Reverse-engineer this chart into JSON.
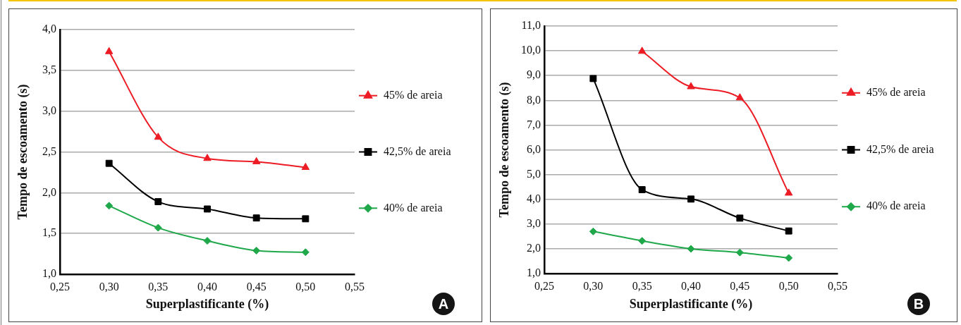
{
  "chart_data": [
    {
      "type": "line",
      "xlabel": "Superplastificante (%)",
      "ylabel": "Tempo de escoamento (s)",
      "x": [
        0.3,
        0.35,
        0.4,
        0.45,
        0.5
      ],
      "xlim": [
        0.25,
        0.55
      ],
      "xticks": [
        {
          "value": 0.25,
          "label": "0,25"
        },
        {
          "value": 0.3,
          "label": "0,30"
        },
        {
          "value": 0.35,
          "label": "0,35"
        },
        {
          "value": 0.4,
          "label": "0,40"
        },
        {
          "value": 0.45,
          "label": "0,45"
        },
        {
          "value": 0.5,
          "label": "0,50"
        },
        {
          "value": 0.55,
          "label": "0,55"
        }
      ],
      "ylim": [
        1,
        4
      ],
      "yticks": [
        {
          "value": 1,
          "label": "1,0"
        },
        {
          "value": 1.5,
          "label": "1,5"
        },
        {
          "value": 2,
          "label": "2,0"
        },
        {
          "value": 2.5,
          "label": "2,5"
        },
        {
          "value": 3,
          "label": "3,0"
        },
        {
          "value": 3.5,
          "label": "3,5"
        },
        {
          "value": 4,
          "label": "4,0"
        }
      ],
      "grid": "y",
      "legend": "right",
      "annotations": [
        "A"
      ],
      "series": [
        {
          "name": "45% de areia",
          "color": "#ed1c24",
          "marker": "triangle",
          "values": [
            3.73,
            2.68,
            2.42,
            2.38,
            2.31
          ]
        },
        {
          "name": "42,5% de areia",
          "color": "#000000",
          "marker": "square",
          "values": [
            2.36,
            1.89,
            1.8,
            1.69,
            1.68
          ]
        },
        {
          "name": "40% de areia",
          "color": "#1fa84a",
          "marker": "diamond",
          "values": [
            1.84,
            1.57,
            1.41,
            1.29,
            1.27
          ]
        }
      ]
    },
    {
      "type": "line",
      "xlabel": "Superplastificante (%)",
      "ylabel": "Tempo de escoamento (s)",
      "x": [
        0.3,
        0.35,
        0.4,
        0.45,
        0.5
      ],
      "xlim": [
        0.25,
        0.55
      ],
      "xticks": [
        {
          "value": 0.25,
          "label": "0,25"
        },
        {
          "value": 0.3,
          "label": "0,30"
        },
        {
          "value": 0.35,
          "label": "0,35"
        },
        {
          "value": 0.4,
          "label": "0,40"
        },
        {
          "value": 0.45,
          "label": "0,45"
        },
        {
          "value": 0.5,
          "label": "0,50"
        },
        {
          "value": 0.55,
          "label": "0,55"
        }
      ],
      "ylim": [
        1,
        11
      ],
      "yticks": [
        {
          "value": 1,
          "label": "1,0"
        },
        {
          "value": 2,
          "label": "2,0"
        },
        {
          "value": 3,
          "label": "3,0"
        },
        {
          "value": 4,
          "label": "4,0"
        },
        {
          "value": 5,
          "label": "5,0"
        },
        {
          "value": 6,
          "label": "6,0"
        },
        {
          "value": 7,
          "label": "7,0"
        },
        {
          "value": 8,
          "label": "8,0"
        },
        {
          "value": 9,
          "label": "9,0"
        },
        {
          "value": 10,
          "label": "10,0"
        },
        {
          "value": 11,
          "label": "11,0"
        }
      ],
      "grid": "y",
      "legend": "right",
      "annotations": [
        "B"
      ],
      "series": [
        {
          "name": "45% de areia",
          "color": "#ed1c24",
          "marker": "triangle",
          "values": [
            null,
            9.98,
            8.55,
            8.1,
            4.25
          ]
        },
        {
          "name": "42,5% de areia",
          "color": "#000000",
          "marker": "square",
          "values": [
            8.88,
            4.39,
            4.01,
            3.24,
            2.72
          ]
        },
        {
          "name": "40% de areia",
          "color": "#1fa84a",
          "marker": "diamond",
          "values": [
            2.7,
            2.32,
            2.0,
            1.85,
            1.63
          ]
        }
      ]
    }
  ]
}
